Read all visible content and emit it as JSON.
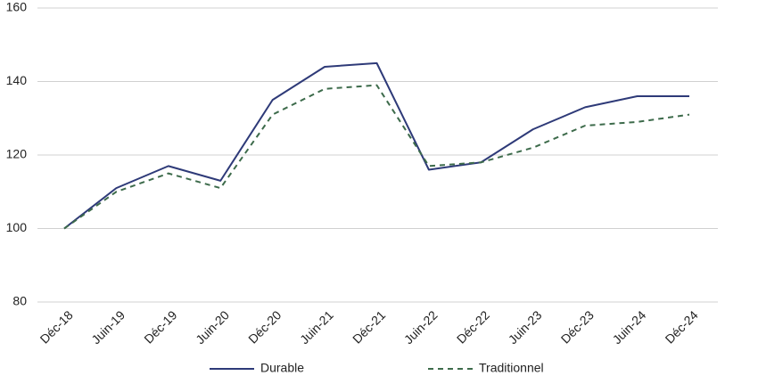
{
  "chart_data": {
    "type": "line",
    "categories": [
      "Déc-18",
      "Juin-19",
      "Déc-19",
      "Juin-20",
      "Déc-20",
      "Juin-21",
      "Déc-21",
      "Juin-22",
      "Déc-22",
      "Juin-23",
      "Déc-23",
      "Juin-24",
      "Déc-24"
    ],
    "series": [
      {
        "name": "Durable",
        "color": "#2e3a78",
        "style": "solid",
        "values": [
          100,
          111,
          117,
          113,
          135,
          144,
          145,
          116,
          118,
          127,
          133,
          136,
          136
        ]
      },
      {
        "name": "Traditionnel",
        "color": "#3d6b4b",
        "style": "dashed",
        "values": [
          100,
          110,
          115,
          111,
          131,
          138,
          139,
          117,
          118,
          122,
          128,
          129,
          131
        ]
      }
    ],
    "ylim": [
      80,
      160
    ],
    "yticks": [
      80,
      100,
      120,
      140,
      160
    ],
    "grid": true,
    "legend": "bottom"
  }
}
